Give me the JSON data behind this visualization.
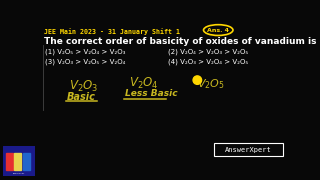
{
  "bg_color": "#080808",
  "header_color": "#FFD700",
  "header_text": "JEE Main 2023 - 31 January Shift 1",
  "question": "The correct order of basicity of oxides of vanadium is",
  "question_color": "#FFFFFF",
  "options": [
    "(1) V₂O₅ > V₂O₄ > V₂O₃",
    "(3) V₂O₃ > V₂O₅ > V₂O₄",
    "(2) V₂O₄ > V₂O₃ > V₂O₅",
    "(4) V₂O₃ > V₂O₄ > V₂O₅"
  ],
  "answer_tag_color": "#FFD700",
  "answer_tag_text": "Ans. 4",
  "hw_color": "#c8b820",
  "watermark": "AnswerXpert",
  "watermark_color": "#FFFFFF",
  "left_line_color": "#444444"
}
